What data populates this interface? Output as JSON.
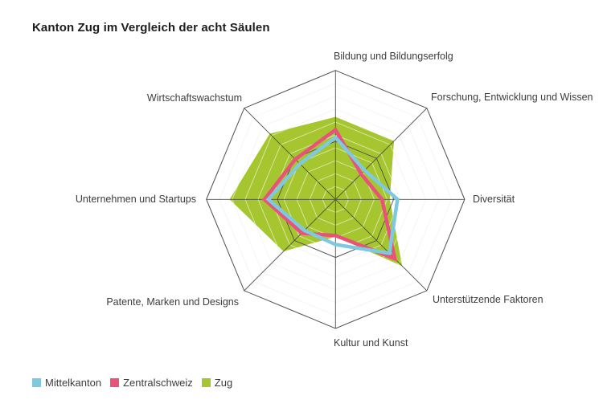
{
  "title": "Kanton Zug im Vergleich der acht Säulen",
  "legend": [
    {
      "label": "Mittelkanton",
      "color": "#7fc9e0"
    },
    {
      "label": "Zentralschweiz",
      "color": "#e9537b"
    },
    {
      "label": "Zug",
      "color": "#a6c62f"
    }
  ],
  "chart_data": {
    "type": "radar",
    "axes": [
      "Bildung und Bildungserfolg",
      "Forschung, Entwicklung und Wissen",
      "Diversität",
      "Unterstützende Faktoren",
      "Kultur und Kunst",
      "Patente, Marken und Designs",
      "Unternehmen und Startups",
      "Wirtschaftswachstum"
    ],
    "max": 100,
    "grid": {
      "light_ring_step_pct": 10,
      "dark_ring_pct": 45,
      "spokes": 8,
      "dark_line_color": "#4d4d4d",
      "light_ring_color": "#ececec",
      "ring_over_fill_color": "rgba(255,255,255,0.55)"
    },
    "series": [
      {
        "name": "Zug",
        "color": "#a6c62f",
        "style": "fill",
        "values": [
          64,
          64,
          42,
          73,
          29,
          57,
          82,
          72
        ]
      },
      {
        "name": "Zentralschweiz",
        "color": "#e9537b",
        "style": "line",
        "values": [
          54,
          28,
          36,
          65,
          28,
          37,
          55,
          44
        ]
      },
      {
        "name": "Mittelkanton",
        "color": "#7fc9e0",
        "style": "line",
        "values": [
          48,
          32,
          48,
          59,
          35,
          34,
          52,
          39
        ]
      }
    ]
  }
}
